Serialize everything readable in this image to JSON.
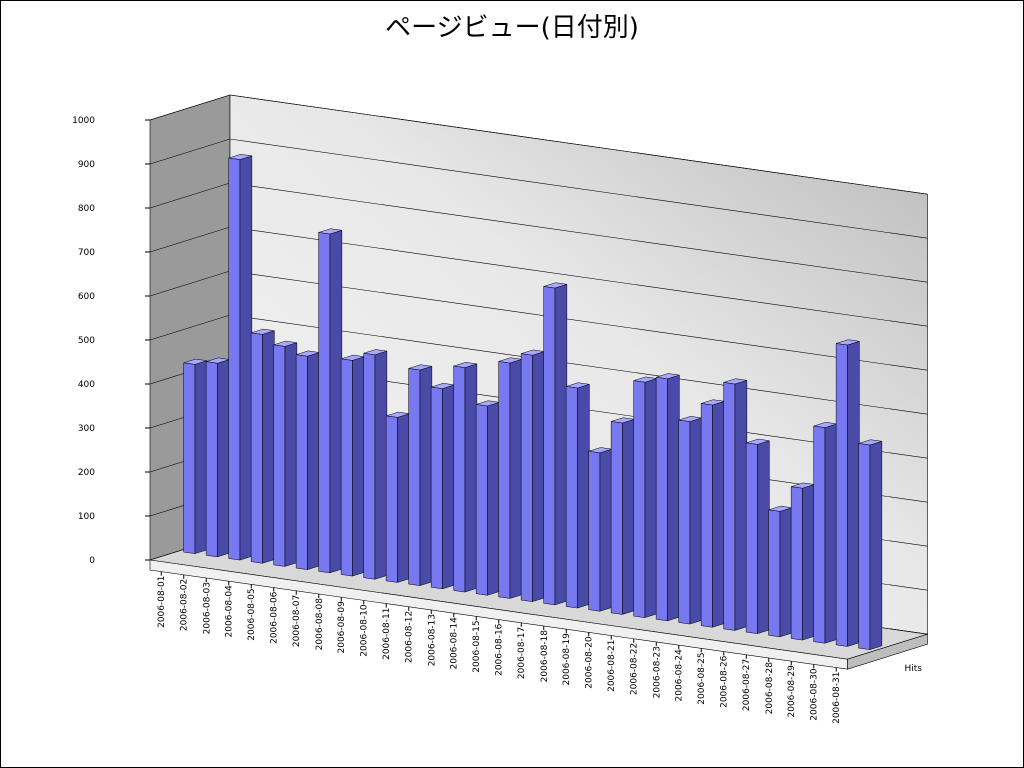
{
  "chart_data": {
    "type": "bar3d",
    "title": "ページビュー(日付別)",
    "categories": [
      "2006-08-01",
      "2006-08-02",
      "2006-08-03",
      "2006-08-04",
      "2006-08-05",
      "2006-08-06",
      "2006-08-07",
      "2006-08-08",
      "2006-08-09",
      "2006-08-10",
      "2006-08-11",
      "2006-08-12",
      "2006-08-13",
      "2006-08-14",
      "2006-08-15",
      "2006-08-16",
      "2006-08-17",
      "2006-08-18",
      "2006-08-19",
      "2006-08-20",
      "2006-08-21",
      "2006-08-22",
      "2006-08-23",
      "2006-08-24",
      "2006-08-25",
      "2006-08-26",
      "2006-08-27",
      "2006-08-28",
      "2006-08-29",
      "2006-08-30",
      "2006-08-31"
    ],
    "series": [
      {
        "name": "Hits",
        "color": "#7878f0",
        "values": [
          430,
          440,
          910,
          520,
          500,
          485,
          770,
          490,
          510,
          375,
          490,
          455,
          510,
          430,
          535,
          560,
          720,
          500,
          360,
          435,
          535,
          550,
          460,
          505,
          560,
          430,
          285,
          345,
          490,
          685,
          465
        ]
      }
    ],
    "ylim": [
      0,
      1000
    ],
    "yticks": [
      0,
      100,
      200,
      300,
      400,
      500,
      600,
      700,
      800,
      900,
      1000
    ],
    "grid": true
  }
}
